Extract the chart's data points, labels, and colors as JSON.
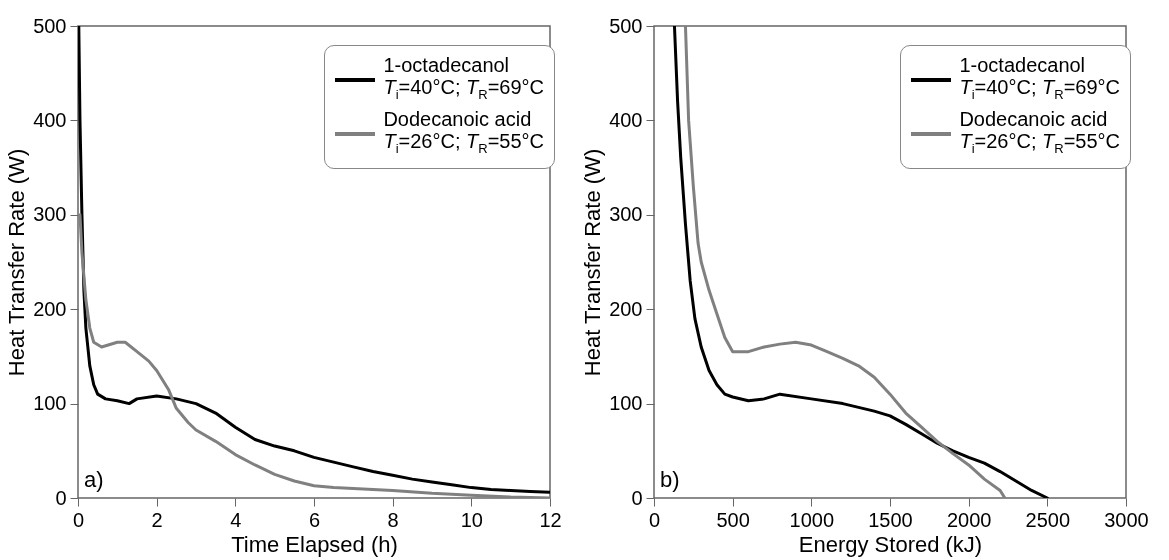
{
  "chart_data": [
    {
      "type": "line",
      "xlabel": "Time Elapsed (h)",
      "ylabel": "Heat Transfer Rate (W)",
      "xlim": [
        0,
        12
      ],
      "xticks": [
        0,
        2,
        4,
        6,
        8,
        10,
        12
      ],
      "ylim": [
        0,
        500
      ],
      "yticks": [
        0,
        100,
        200,
        300,
        400,
        500
      ],
      "legend": "top right",
      "grid": false,
      "annotations": [
        "a)"
      ],
      "series": [
        {
          "name": "1-octadecanol\nT$_{i}$=40°C; T$_{R}$=69°C",
          "color": "#000000",
          "x": [
            0.02,
            0.05,
            0.1,
            0.15,
            0.2,
            0.3,
            0.4,
            0.5,
            0.7,
            1,
            1.3,
            1.5,
            2,
            2.5,
            3,
            3.5,
            4,
            4.5,
            5,
            5.5,
            6,
            6.5,
            7,
            7.5,
            8,
            8.5,
            9,
            9.5,
            10,
            10.5,
            11,
            11.5,
            12
          ],
          "values": [
            500,
            400,
            300,
            220,
            180,
            140,
            120,
            110,
            105,
            103,
            100,
            105,
            108,
            105,
            100,
            90,
            75,
            62,
            55,
            50,
            43,
            38,
            33,
            28,
            24,
            20,
            17,
            14,
            11,
            9,
            8,
            7,
            6
          ]
        },
        {
          "name": "Dodecanoic acid\nT$_{i}$=26°C; T$_{R}$=55°C",
          "color": "#808080",
          "x": [
            0.05,
            0.1,
            0.2,
            0.3,
            0.4,
            0.6,
            1,
            1.2,
            1.5,
            1.8,
            2,
            2.3,
            2.5,
            2.8,
            3,
            3.5,
            4,
            4.5,
            5,
            5.5,
            6,
            6.5,
            7,
            8,
            9,
            10,
            11,
            12
          ],
          "values": [
            300,
            260,
            210,
            180,
            165,
            160,
            165,
            165,
            155,
            145,
            135,
            115,
            95,
            80,
            72,
            60,
            46,
            35,
            25,
            18,
            13,
            11,
            10,
            8,
            5,
            3,
            1,
            0
          ]
        }
      ]
    },
    {
      "type": "line",
      "xlabel": "Energy Stored (kJ)",
      "ylabel": "Heat Transfer Rate (W)",
      "xlim": [
        0,
        3000
      ],
      "xticks": [
        0,
        500,
        1000,
        1500,
        2000,
        2500,
        3000
      ],
      "ylim": [
        0,
        500
      ],
      "yticks": [
        0,
        100,
        200,
        300,
        400,
        500
      ],
      "legend": "top right",
      "grid": false,
      "annotations": [
        "b)"
      ],
      "series": [
        {
          "name": "1-octadecanol\nT$_{i}$=40°C; T$_{R}$=69°C",
          "color": "#000000",
          "x": [
            130,
            150,
            170,
            200,
            230,
            260,
            300,
            350,
            400,
            450,
            500,
            600,
            700,
            800,
            1000,
            1200,
            1400,
            1500,
            1600,
            1700,
            1800,
            1900,
            2000,
            2100,
            2200,
            2300,
            2400,
            2500
          ],
          "values": [
            500,
            420,
            360,
            290,
            230,
            190,
            160,
            135,
            120,
            110,
            107,
            103,
            105,
            110,
            105,
            100,
            92,
            87,
            78,
            68,
            58,
            50,
            43,
            37,
            28,
            18,
            8,
            0
          ]
        },
        {
          "name": "Dodecanoic acid\nT$_{i}$=26°C; T$_{R}$=55°C",
          "color": "#808080",
          "x": [
            200,
            220,
            250,
            280,
            300,
            350,
            400,
            450,
            500,
            600,
            700,
            800,
            900,
            1000,
            1100,
            1200,
            1300,
            1400,
            1500,
            1600,
            1700,
            1800,
            1900,
            2000,
            2100,
            2200,
            2230
          ],
          "values": [
            500,
            400,
            330,
            270,
            250,
            220,
            195,
            170,
            155,
            155,
            160,
            163,
            165,
            162,
            155,
            148,
            140,
            128,
            110,
            90,
            75,
            60,
            47,
            35,
            20,
            8,
            0
          ]
        }
      ]
    }
  ]
}
